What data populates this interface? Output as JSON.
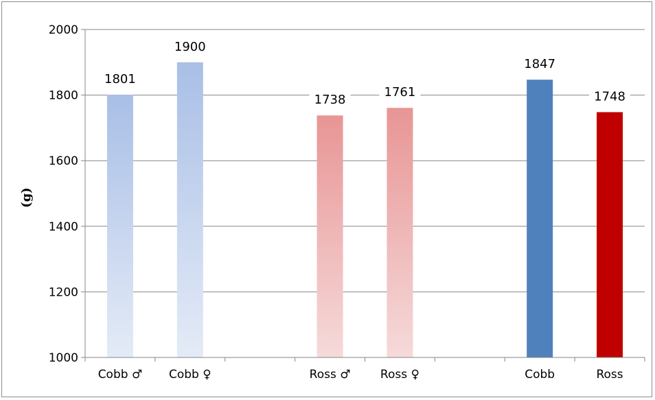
{
  "chart_data": {
    "type": "bar",
    "title": "",
    "xlabel": "",
    "ylabel": "(g)",
    "ylim": [
      1000,
      2000
    ],
    "yticks": [
      1000,
      1200,
      1400,
      1600,
      1800,
      2000
    ],
    "grid": true,
    "categories": [
      "Cobb ♂",
      "Cobb ♀",
      "",
      "Ross ♂",
      "Ross ♀",
      "",
      "Cobb",
      "Ross"
    ],
    "values": [
      1801,
      1900,
      null,
      1738,
      1761,
      null,
      1847,
      1748
    ],
    "data_labels": [
      "1801",
      "1900",
      "",
      "1738",
      "1761",
      "",
      "1847",
      "1748"
    ],
    "bar_styles": [
      "light-blue-gradient",
      "light-blue-gradient",
      "",
      "light-red-gradient",
      "light-red-gradient",
      "",
      "solid-blue",
      "solid-red"
    ],
    "colors": {
      "light_blue_top": "#a9bfe6",
      "light_blue_bottom": "#e4ebf7",
      "light_red_top": "#e89595",
      "light_red_bottom": "#f6dada",
      "solid_blue": "#4f81bd",
      "solid_red": "#c00000",
      "grid": "#868686"
    }
  }
}
